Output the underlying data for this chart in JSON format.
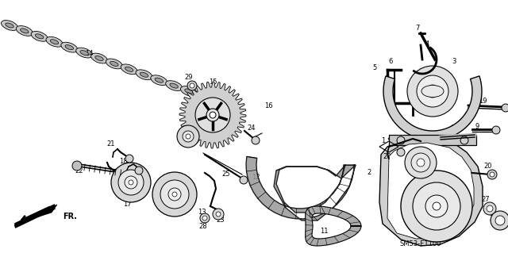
{
  "bg_color": "#ffffff",
  "fig_width": 6.4,
  "fig_height": 3.19,
  "dpi": 100,
  "diagram_code": "SM53-E1100"
}
